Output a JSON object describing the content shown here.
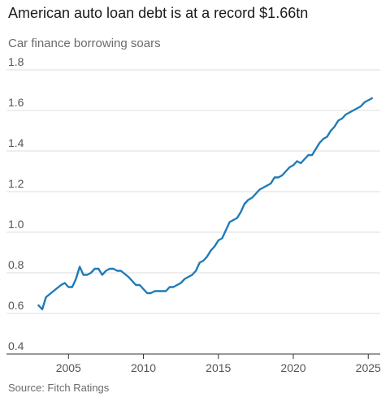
{
  "title": "American auto loan debt is at a record $1.66tn",
  "subtitle": "Car finance borrowing soars",
  "source": "Source: Fitch Ratings",
  "colors": {
    "line": "#1f7ab8",
    "grid": "#dcdcdc",
    "axis": "#333333"
  },
  "chart_data": {
    "type": "line",
    "title": "American auto loan debt is at a record $1.66tn",
    "subtitle": "Car finance borrowing soars",
    "xlabel": "",
    "ylabel": "",
    "xlim": [
      2002.6,
      2025.8
    ],
    "ylim": [
      0.4,
      1.8
    ],
    "yticks": [
      0.4,
      0.6,
      0.8,
      1.0,
      1.2,
      1.4,
      1.6,
      1.8
    ],
    "ytick_labels": [
      "0.4",
      "0.6",
      "0.8",
      "1.0",
      "1.2",
      "1.4",
      "1.6",
      "1.8"
    ],
    "xticks": [
      2005,
      2010,
      2015,
      2020,
      2025
    ],
    "xtick_labels": [
      "2005",
      "2010",
      "2015",
      "2020",
      "2025"
    ],
    "grid": true,
    "legend": "none",
    "series": [
      {
        "x": [
          2003.0,
          2003.25,
          2003.5,
          2004.0,
          2004.5,
          2004.75,
          2005.0,
          2005.25,
          2005.5,
          2005.75,
          2006.0,
          2006.25,
          2006.5,
          2006.75,
          2007.0,
          2007.25,
          2007.5,
          2007.75,
          2008.0,
          2008.25,
          2008.5,
          2009.0,
          2009.25,
          2009.5,
          2009.75,
          2010.0,
          2010.25,
          2010.5,
          2010.75,
          2011.0,
          2011.25,
          2011.5,
          2011.75,
          2012.0,
          2012.5,
          2012.75,
          2013.0,
          2013.25,
          2013.5,
          2013.75,
          2014.0,
          2014.25,
          2014.5,
          2014.75,
          2015.0,
          2015.25,
          2015.5,
          2015.75,
          2016.0,
          2016.25,
          2016.5,
          2016.75,
          2017.0,
          2017.25,
          2017.5,
          2017.75,
          2018.0,
          2018.25,
          2018.5,
          2018.75,
          2019.0,
          2019.25,
          2019.5,
          2019.75,
          2020.0,
          2020.25,
          2020.5,
          2020.75,
          2021.0,
          2021.25,
          2021.5,
          2021.75,
          2022.0,
          2022.25,
          2022.5,
          2022.75,
          2023.0,
          2023.25,
          2023.5,
          2023.75,
          2024.0,
          2024.25,
          2024.5,
          2024.75,
          2025.0,
          2025.25
        ],
        "values": [
          0.64,
          0.62,
          0.68,
          0.71,
          0.74,
          0.75,
          0.73,
          0.73,
          0.77,
          0.83,
          0.79,
          0.79,
          0.8,
          0.82,
          0.82,
          0.79,
          0.81,
          0.82,
          0.82,
          0.81,
          0.81,
          0.78,
          0.76,
          0.74,
          0.74,
          0.72,
          0.7,
          0.7,
          0.71,
          0.71,
          0.71,
          0.71,
          0.73,
          0.73,
          0.75,
          0.77,
          0.78,
          0.79,
          0.81,
          0.85,
          0.86,
          0.88,
          0.91,
          0.93,
          0.96,
          0.97,
          1.01,
          1.05,
          1.06,
          1.07,
          1.1,
          1.14,
          1.16,
          1.17,
          1.19,
          1.21,
          1.22,
          1.23,
          1.24,
          1.27,
          1.27,
          1.28,
          1.3,
          1.32,
          1.33,
          1.35,
          1.34,
          1.36,
          1.38,
          1.38,
          1.41,
          1.44,
          1.46,
          1.47,
          1.5,
          1.52,
          1.55,
          1.56,
          1.58,
          1.59,
          1.6,
          1.61,
          1.62,
          1.64,
          1.65,
          1.66
        ]
      }
    ]
  }
}
